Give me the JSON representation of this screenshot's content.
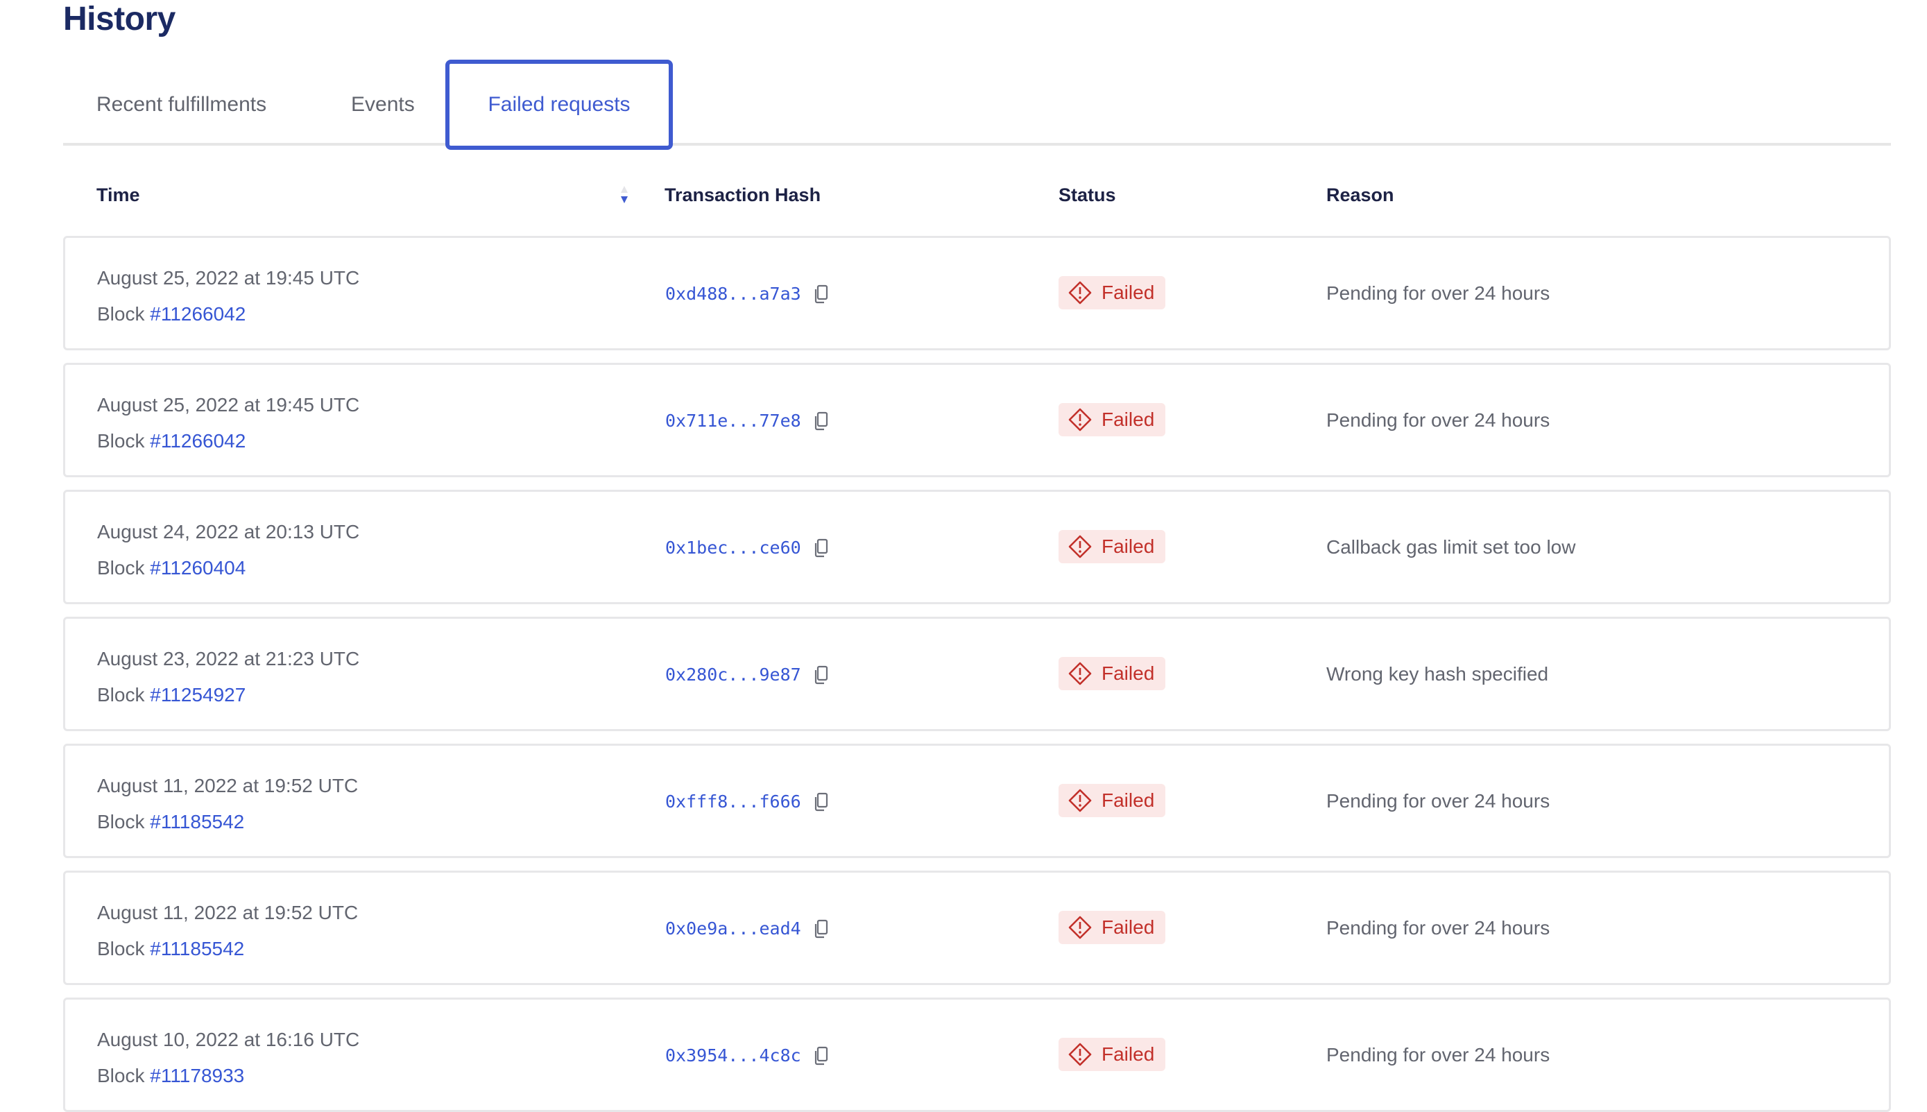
{
  "page": {
    "title": "History"
  },
  "tabs": [
    {
      "label": "Recent fulfillments",
      "active": false
    },
    {
      "label": "Events",
      "active": false
    },
    {
      "label": "Failed requests",
      "active": true
    }
  ],
  "table": {
    "columns": {
      "time": "Time",
      "hash": "Transaction Hash",
      "status": "Status",
      "reason": "Reason"
    },
    "sort": {
      "column": "Time",
      "direction": "descending"
    },
    "block_prefix": "Block",
    "rows": [
      {
        "date": "August 25, 2022 at 19:45 UTC",
        "block": "#11266042",
        "hash": "0xd488...a7a3",
        "status": "Failed",
        "reason": "Pending for over 24 hours"
      },
      {
        "date": "August 25, 2022 at 19:45 UTC",
        "block": "#11266042",
        "hash": "0x711e...77e8",
        "status": "Failed",
        "reason": "Pending for over 24 hours"
      },
      {
        "date": "August 24, 2022 at 20:13 UTC",
        "block": "#11260404",
        "hash": "0x1bec...ce60",
        "status": "Failed",
        "reason": "Callback gas limit set too low"
      },
      {
        "date": "August 23, 2022 at 21:23 UTC",
        "block": "#11254927",
        "hash": "0x280c...9e87",
        "status": "Failed",
        "reason": "Wrong key hash specified"
      },
      {
        "date": "August 11, 2022 at 19:52 UTC",
        "block": "#11185542",
        "hash": "0xfff8...f666",
        "status": "Failed",
        "reason": "Pending for over 24 hours"
      },
      {
        "date": "August 11, 2022 at 19:52 UTC",
        "block": "#11185542",
        "hash": "0x0e9a...ead4",
        "status": "Failed",
        "reason": "Pending for over 24 hours"
      },
      {
        "date": "August 10, 2022 at 16:16 UTC",
        "block": "#11178933",
        "hash": "0x3954...4c8c",
        "status": "Failed",
        "reason": "Pending for over 24 hours"
      }
    ]
  },
  "colors": {
    "accent": "#3f5bd0",
    "link": "#3656d4",
    "title": "#1b2a63",
    "failed_text": "#c2302a",
    "failed_bg": "#fbe8e7"
  },
  "icons": {
    "sort": "sort-desc-icon",
    "copy": "copy-icon",
    "failed": "warning-diamond-icon"
  }
}
